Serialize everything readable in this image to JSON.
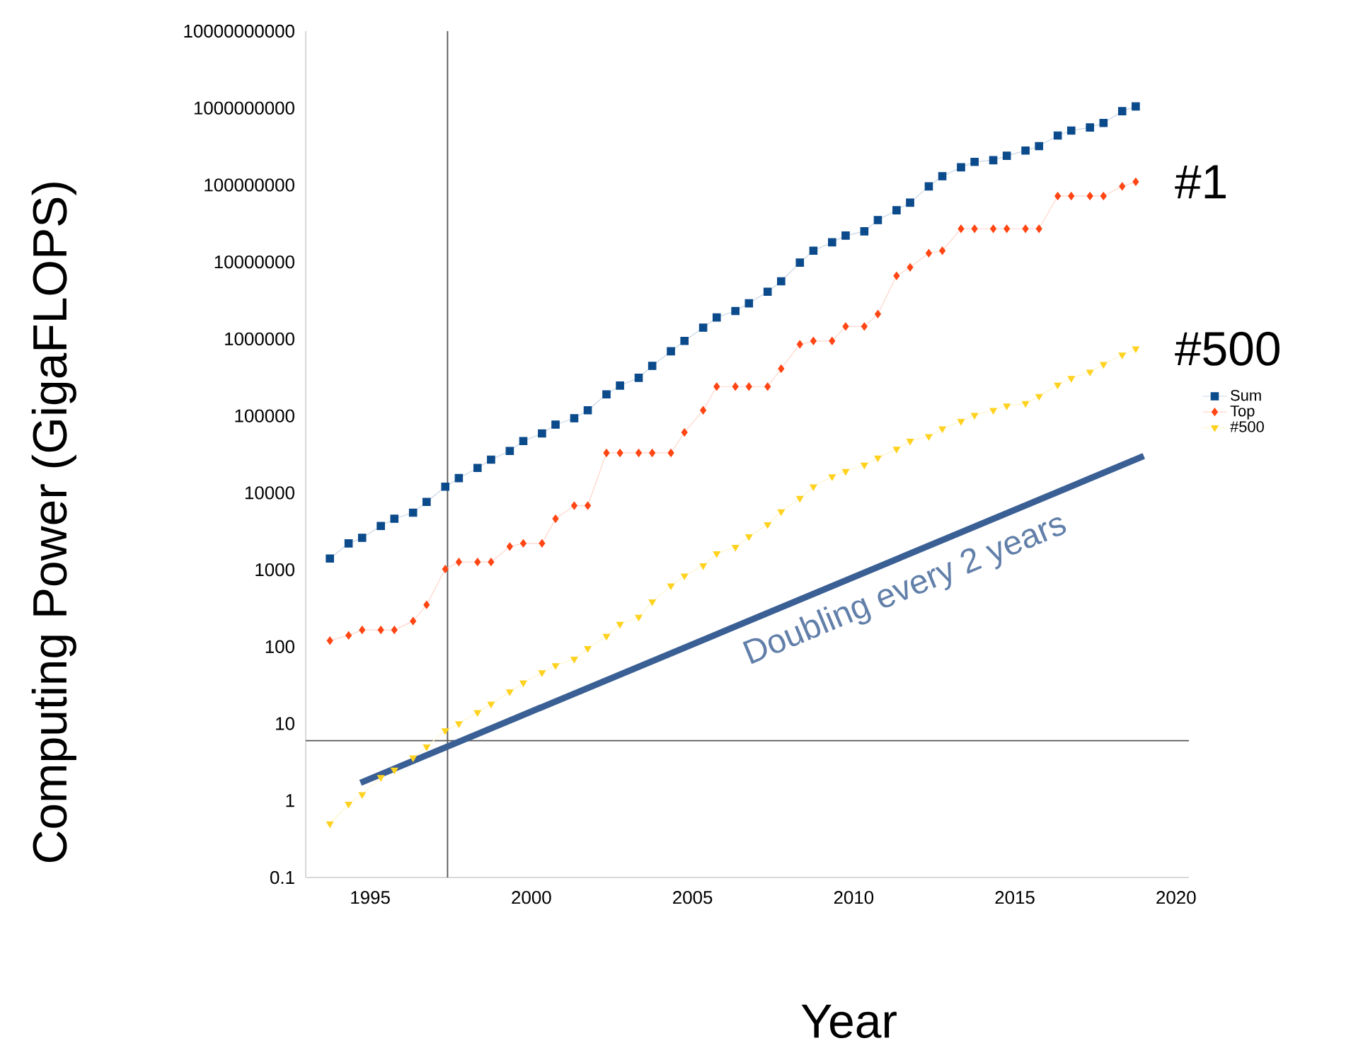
{
  "chart_data": {
    "type": "line",
    "xlabel": "Year",
    "ylabel": "Computing Power (GigaFLOPS)",
    "x": [
      1993.75,
      1994.33,
      1994.75,
      1995.33,
      1995.75,
      1996.33,
      1996.75,
      1997.33,
      1997.75,
      1998.33,
      1998.75,
      1999.33,
      1999.75,
      2000.33,
      2000.75,
      2001.33,
      2001.75,
      2002.33,
      2002.75,
      2003.33,
      2003.75,
      2004.33,
      2004.75,
      2005.33,
      2005.75,
      2006.33,
      2006.75,
      2007.33,
      2007.75,
      2008.33,
      2008.75,
      2009.33,
      2009.75,
      2010.33,
      2010.75,
      2011.33,
      2011.75,
      2012.33,
      2012.75,
      2013.33,
      2013.75,
      2014.33,
      2014.75,
      2015.33,
      2015.75,
      2016.33,
      2016.75,
      2017.33,
      2017.75,
      2018.33,
      2018.75
    ],
    "series": [
      {
        "name": "Sum",
        "color": "#0b4a8b",
        "marker": "square",
        "values": [
          1400,
          2200,
          2600,
          3700,
          4600,
          5500,
          7600,
          12000,
          15500,
          21000,
          27000,
          35000,
          47000,
          59000,
          77000,
          93000,
          118000,
          190000,
          247000,
          312000,
          446000,
          690000,
          940000,
          1400000,
          1900000,
          2300000,
          2900000,
          4100000,
          5600000,
          9800000,
          14000000,
          18000000,
          22000000,
          25000000,
          35000000,
          47000000,
          59000000,
          96000000,
          130000000,
          170000000,
          200000000,
          210000000,
          240000000,
          280000000,
          320000000,
          440000000,
          510000000,
          560000000,
          640000000,
          910000000,
          1050000000
        ]
      },
      {
        "name": "Top",
        "color": "#ff4513",
        "marker": "diamond",
        "values": [
          120,
          140,
          165,
          165,
          165,
          215,
          350,
          1020,
          1260,
          1260,
          1260,
          2000,
          2200,
          2200,
          4600,
          6800,
          6800,
          33000,
          33000,
          33000,
          33000,
          33000,
          61000,
          118000,
          240000,
          240000,
          240000,
          240000,
          410000,
          850000,
          940000,
          940000,
          1450000,
          1450000,
          2100000,
          6600000,
          8500000,
          13000000,
          14000000,
          27000000,
          27000000,
          27000000,
          27000000,
          27000000,
          27000000,
          72000000,
          72000000,
          72000000,
          72000000,
          96000000,
          110000000
        ]
      },
      {
        "name": "#500",
        "color": "#ffd21f",
        "marker": "triangle",
        "values": [
          0.5,
          0.9,
          1.2,
          2.0,
          2.5,
          3.6,
          5.0,
          8.1,
          10,
          14,
          18,
          26,
          34,
          46,
          57,
          69,
          95,
          137,
          196,
          243,
          384,
          620,
          835,
          1130,
          1620,
          1960,
          2700,
          3870,
          5700,
          8500,
          12000,
          16200,
          19000,
          23000,
          28500,
          37000,
          47000,
          54000,
          68000,
          85000,
          102000,
          118000,
          135000,
          145000,
          180000,
          252000,
          308000,
          372000,
          468000,
          620000,
          745000
        ]
      },
      {
        "name": "Doubling every 2 years",
        "color": "#3a5f94",
        "marker": "none",
        "x": [
          1994.7,
          2019.0
        ],
        "values": [
          1.7,
          30000
        ]
      }
    ],
    "annotations": [
      {
        "text": "#1",
        "x": 2018.75,
        "y": 110000000
      },
      {
        "text": "#500",
        "x": 2018.75,
        "y": 745000
      }
    ],
    "ref_lines": [
      {
        "axis": "y",
        "value": 6,
        "color": "#555555"
      },
      {
        "axis": "x",
        "value": 1997.4,
        "color": "#555555"
      }
    ],
    "log": "y",
    "xlim": [
      1993,
      2020.4
    ],
    "ylim": [
      0.1,
      10000000000
    ],
    "xticks": [
      1995,
      2000,
      2005,
      2010,
      2015,
      2020
    ],
    "yticks": [
      0.1,
      1,
      10,
      100,
      1000,
      10000,
      100000,
      1000000,
      10000000,
      100000000,
      1000000000,
      10000000000
    ],
    "legend": "right",
    "line_style": "solid"
  }
}
